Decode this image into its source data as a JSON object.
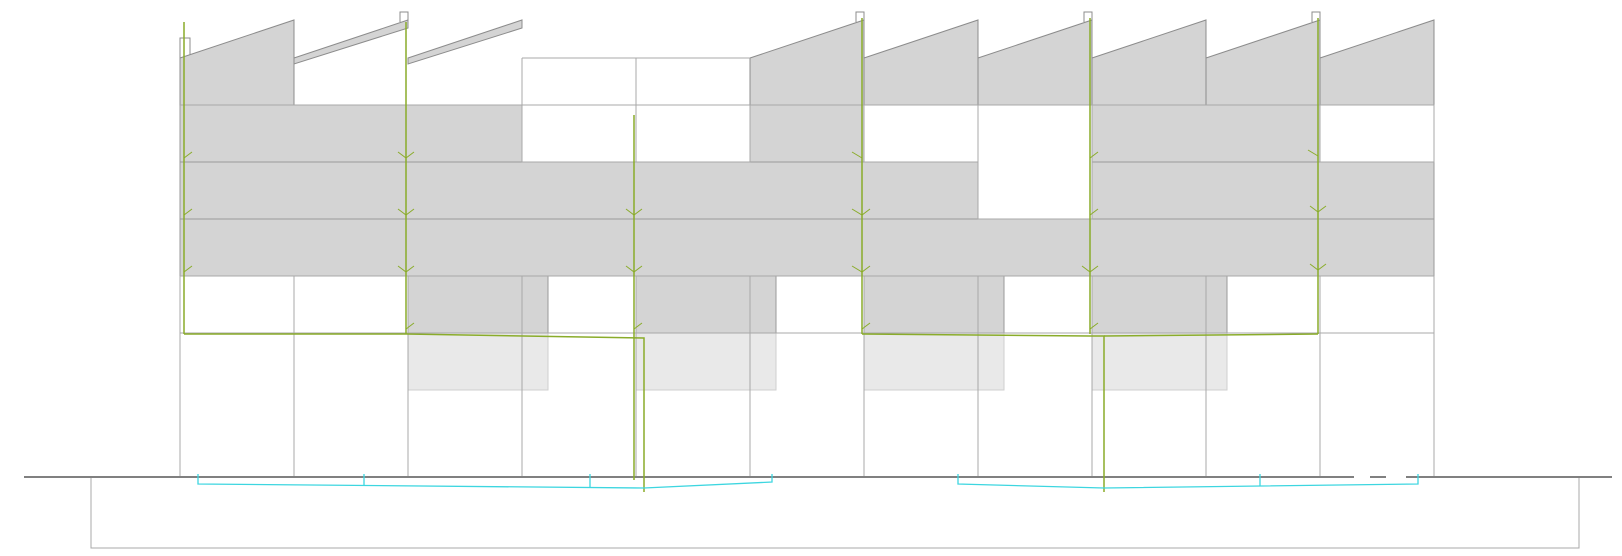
{
  "drawing": {
    "type": "building-section-elevation",
    "colors": {
      "background": "#ffffff",
      "outline": "#a0a0a0",
      "solid_fill": "#d4d4d4",
      "light_fill": "#e8e8e8",
      "ground": "#808080",
      "drain_pipe": "#8aac2a",
      "ground_pipe": "#3dd6e0"
    },
    "structure": {
      "bays": 11,
      "levels": 7,
      "roof": "sawtooth"
    },
    "systems": [
      {
        "id": "roof-drainage",
        "kind": "downpipe",
        "color": "drain_pipe",
        "count": 6
      },
      {
        "id": "underground-drainage",
        "kind": "ground-collector",
        "color": "ground_pipe",
        "count": 2
      }
    ]
  }
}
